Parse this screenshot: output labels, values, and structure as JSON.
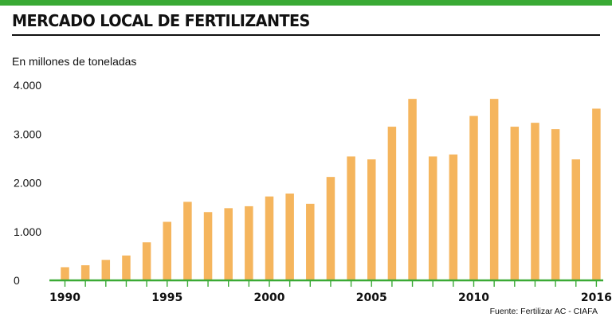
{
  "title": "MERCADO LOCAL DE FERTILIZANTES",
  "units_label": "En millones de toneladas",
  "source": "Fuente: Fertilizar AC - CIAFA",
  "colors": {
    "bar": "#f5b55d",
    "accent": "#3aaa35",
    "axis": "#3aaa35",
    "text": "#111111"
  },
  "chart_data": {
    "type": "bar",
    "x": [
      1990,
      1991,
      1992,
      1993,
      1994,
      1995,
      1996,
      1997,
      1998,
      1999,
      2000,
      2001,
      2002,
      2003,
      2004,
      2005,
      2006,
      2007,
      2008,
      2009,
      2010,
      2011,
      2012,
      2013,
      2014,
      2015,
      2016
    ],
    "values": [
      270,
      310,
      420,
      510,
      780,
      1200,
      1610,
      1400,
      1480,
      1520,
      1720,
      1780,
      1570,
      2120,
      2540,
      2480,
      3150,
      3720,
      2540,
      2580,
      3370,
      3720,
      3150,
      3230,
      3100,
      2480,
      3520
    ],
    "ylabel": "En millones de toneladas",
    "ylim": [
      0,
      4000
    ],
    "yticks": [
      {
        "value": 0,
        "label": "0"
      },
      {
        "value": 1000,
        "label": "1.000"
      },
      {
        "value": 2000,
        "label": "2.000"
      },
      {
        "value": 3000,
        "label": "3.000"
      },
      {
        "value": 4000,
        "label": "4.000"
      }
    ],
    "xticks": [
      {
        "value": 1990,
        "label": "1990"
      },
      {
        "value": 1995,
        "label": "1995"
      },
      {
        "value": 2000,
        "label": "2000"
      },
      {
        "value": 2005,
        "label": "2005"
      },
      {
        "value": 2010,
        "label": "2010"
      },
      {
        "value": 2016,
        "label": "2016"
      }
    ],
    "grid": false,
    "legend": "none"
  }
}
